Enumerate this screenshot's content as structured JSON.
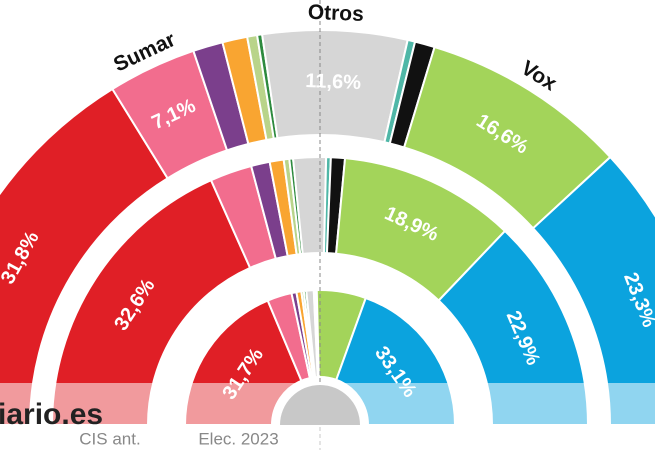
{
  "chart_data": {
    "type": "semidonut",
    "categories": [
      null,
      "Sumar",
      null,
      null,
      null,
      null,
      "Otros",
      null,
      null,
      "Vox",
      null
    ],
    "colors": [
      "#e01f26",
      "#f26d8e",
      "#7b3f8c",
      "#f9a531",
      "#b9d48a",
      "#2d8a3e",
      "#d6d6d6",
      "#4fb7a7",
      "#111111",
      "#a3d45a",
      "#0ba3de"
    ],
    "series": [
      {
        "values": [
          31.8,
          7.1,
          2.4,
          2.0,
          0.8,
          0.4,
          11.6,
          0.6,
          1.6,
          16.6,
          23.3
        ],
        "value_labels": [
          "31,8%",
          "7,1%",
          null,
          null,
          null,
          null,
          "11,6%",
          null,
          null,
          "16,6%",
          "23,3%"
        ]
      },
      {
        "name": "CIS ant.",
        "values": [
          32.6,
          4.5,
          2.0,
          1.5,
          0.6,
          0.4,
          3.5,
          0.5,
          1.5,
          18.9,
          22.9
        ],
        "value_labels": [
          "32,6%",
          null,
          null,
          null,
          null,
          null,
          null,
          null,
          null,
          "18,9%",
          "22,9%"
        ]
      },
      {
        "name": "Elec. 2023",
        "values": [
          31.7,
          5.0,
          1.0,
          1.0,
          0.5,
          0.5,
          1.5,
          0.3,
          0.3,
          10.0,
          33.1
        ],
        "value_labels": [
          "31,7%",
          null,
          null,
          null,
          null,
          null,
          null,
          null,
          null,
          null,
          "33,1%"
        ]
      }
    ]
  },
  "logo": "iario.es"
}
